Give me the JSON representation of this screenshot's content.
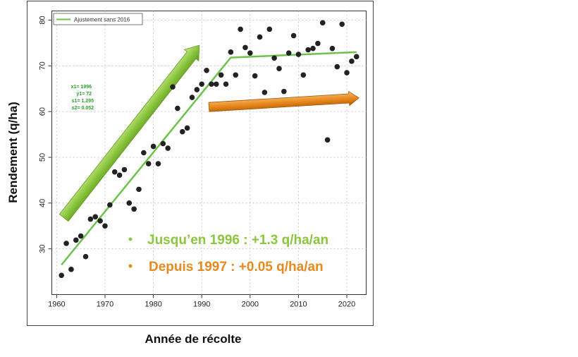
{
  "chart_data": {
    "type": "scatter",
    "xlabel": "Année de récolte",
    "ylabel": "Rendement (q/ha)",
    "xlim": [
      1959,
      2024
    ],
    "ylim": [
      20,
      82
    ],
    "x_ticks": [
      1960,
      1970,
      1980,
      1990,
      2000,
      2010,
      2020
    ],
    "y_ticks": [
      30,
      40,
      50,
      60,
      70,
      80
    ],
    "grid": true,
    "legend": {
      "position": "top-left",
      "label": "Ajustement sans 2016"
    },
    "series": [
      {
        "type": "scatter",
        "color": "#222222",
        "points": [
          [
            1961,
            24.2
          ],
          [
            1962,
            31.2
          ],
          [
            1963,
            25.5
          ],
          [
            1964,
            31.9
          ],
          [
            1965,
            32.8
          ],
          [
            1966,
            28.3
          ],
          [
            1967,
            36.5
          ],
          [
            1968,
            37.0
          ],
          [
            1969,
            36.1
          ],
          [
            1970,
            35.0
          ],
          [
            1971,
            39.6
          ],
          [
            1972,
            46.8
          ],
          [
            1973,
            46.1
          ],
          [
            1974,
            47.3
          ],
          [
            1975,
            40.0
          ],
          [
            1976,
            38.7
          ],
          [
            1977,
            43.0
          ],
          [
            1978,
            51.0
          ],
          [
            1979,
            48.6
          ],
          [
            1980,
            52.4
          ],
          [
            1981,
            48.6
          ],
          [
            1982,
            53.0
          ],
          [
            1983,
            52.0
          ],
          [
            1984,
            65.4
          ],
          [
            1985,
            60.7
          ],
          [
            1986,
            55.6
          ],
          [
            1987,
            56.4
          ],
          [
            1988,
            63.1
          ],
          [
            1989,
            64.8
          ],
          [
            1990,
            66.0
          ],
          [
            1991,
            69.0
          ],
          [
            1992,
            66.0
          ],
          [
            1993,
            66.0
          ],
          [
            1994,
            68.0
          ],
          [
            1995,
            66.0
          ],
          [
            1996,
            73.0
          ],
          [
            1997,
            68.0
          ],
          [
            1998,
            78.0
          ],
          [
            1999,
            74.0
          ],
          [
            2000,
            72.8
          ],
          [
            2001,
            67.8
          ],
          [
            2002,
            76.3
          ],
          [
            2003,
            64.2
          ],
          [
            2004,
            78.0
          ],
          [
            2005,
            71.7
          ],
          [
            2006,
            69.4
          ],
          [
            2007,
            64.4
          ],
          [
            2008,
            72.8
          ],
          [
            2009,
            76.6
          ],
          [
            2010,
            72.5
          ],
          [
            2011,
            68.0
          ],
          [
            2012,
            73.5
          ],
          [
            2013,
            73.8
          ],
          [
            2014,
            74.9
          ],
          [
            2015,
            79.4
          ],
          [
            2016,
            53.8
          ],
          [
            2017,
            73.8
          ],
          [
            2018,
            69.8
          ],
          [
            2019,
            79.1
          ],
          [
            2020,
            68.5
          ],
          [
            2021,
            71.0
          ],
          [
            2022,
            72.0
          ]
        ]
      },
      {
        "type": "line",
        "name": "Ajustement sans 2016",
        "color": "#6cc24a",
        "points": [
          [
            1961,
            26.5
          ],
          [
            1996,
            71.8
          ],
          [
            2022,
            73.0
          ]
        ]
      }
    ],
    "fit_params": {
      "lines": [
        "x1= 1996",
        "y1= 72",
        "s1= 1.295",
        "s2= 0.052"
      ],
      "color": "#2aa02a"
    },
    "annotations": [
      {
        "text": "Jusqu’en 1996 : +1.3 q/ha/an",
        "color": "#8cc63f"
      },
      {
        "text": "Depuis 1997 : +0.05 q/ha/an",
        "color": "#e8891c"
      }
    ],
    "arrows": [
      {
        "color": "#8cc63f",
        "from": [
          1961.5,
          36.8
        ],
        "to": [
          1989.5,
          74.5
        ]
      },
      {
        "color": "#e8891c",
        "from": [
          1991.5,
          61.0
        ],
        "to": [
          2022.5,
          63.0
        ]
      }
    ]
  }
}
